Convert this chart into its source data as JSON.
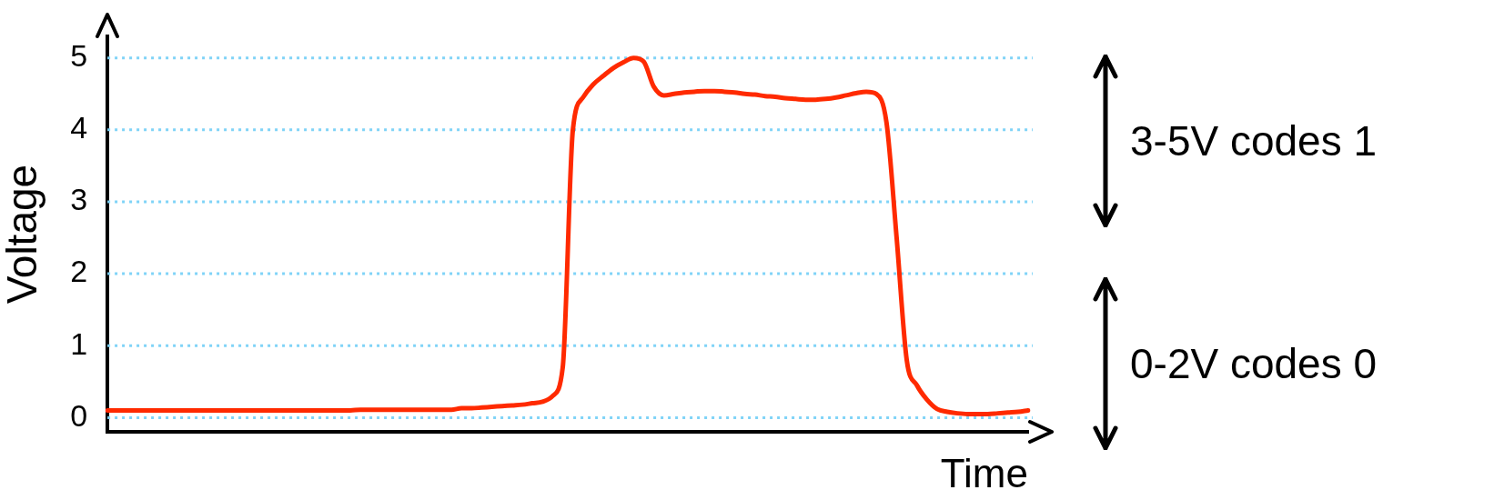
{
  "chart_data": {
    "type": "line",
    "xlabel": "Time",
    "ylabel": "Voltage",
    "categories": [
      null,
      null,
      null,
      null,
      null,
      null,
      null,
      null,
      null,
      null,
      null,
      null,
      null,
      null,
      null,
      null,
      null,
      null,
      null,
      null,
      null,
      null,
      null,
      null,
      null,
      null,
      null,
      null,
      null,
      null,
      null,
      null,
      null,
      null,
      null,
      null,
      null,
      null,
      null,
      null,
      null,
      null,
      null,
      null,
      null,
      null,
      null,
      null,
      null,
      null,
      null,
      null,
      null,
      null,
      null,
      null,
      null,
      null,
      null,
      null,
      null,
      null,
      null,
      null,
      null,
      null,
      null,
      null,
      null,
      null,
      null,
      null,
      null,
      null,
      null,
      null,
      null,
      null,
      null,
      null,
      null,
      null,
      null,
      null,
      null,
      null,
      null,
      null,
      null,
      null,
      null,
      null
    ],
    "series": [
      {
        "color": "#ff2a00",
        "values": [
          0.1,
          0.1,
          0.1,
          0.1,
          0.1,
          0.1,
          0.1,
          0.1,
          0.1,
          0.1,
          0.1,
          0.1,
          0.1,
          0.1,
          0.1,
          0.1,
          0.1,
          0.1,
          0.1,
          0.1,
          0.1,
          0.1,
          0.1,
          0.1,
          0.1,
          0.11,
          0.11,
          0.11,
          0.11,
          0.11,
          0.11,
          0.11,
          0.11,
          0.11,
          0.11,
          0.13,
          0.13,
          0.14,
          0.15,
          0.16,
          0.17,
          0.18,
          0.2,
          0.22,
          0.3,
          0.7,
          4.0,
          4.45,
          4.63,
          4.75,
          4.86,
          4.94,
          5.0,
          4.95,
          4.6,
          4.48,
          4.5,
          4.52,
          4.53,
          4.54,
          4.54,
          4.53,
          4.52,
          4.5,
          4.49,
          4.47,
          4.46,
          4.44,
          4.43,
          4.42,
          4.42,
          4.43,
          4.45,
          4.48,
          4.51,
          4.53,
          4.5,
          4.1,
          2.5,
          0.8,
          0.45,
          0.25,
          0.12,
          0.08,
          0.06,
          0.05,
          0.05,
          0.05,
          0.06,
          0.07,
          0.08,
          0.1
        ]
      }
    ],
    "ylim": [
      -0.2,
      5.3
    ],
    "yticks": [
      0,
      1,
      2,
      3,
      4,
      5
    ],
    "grid": "y",
    "legend": false,
    "marker": "none",
    "line_style": "solid",
    "tick_labels": "y",
    "annotations": [
      "3-5V codes 1",
      "0-2V codes 0"
    ]
  }
}
